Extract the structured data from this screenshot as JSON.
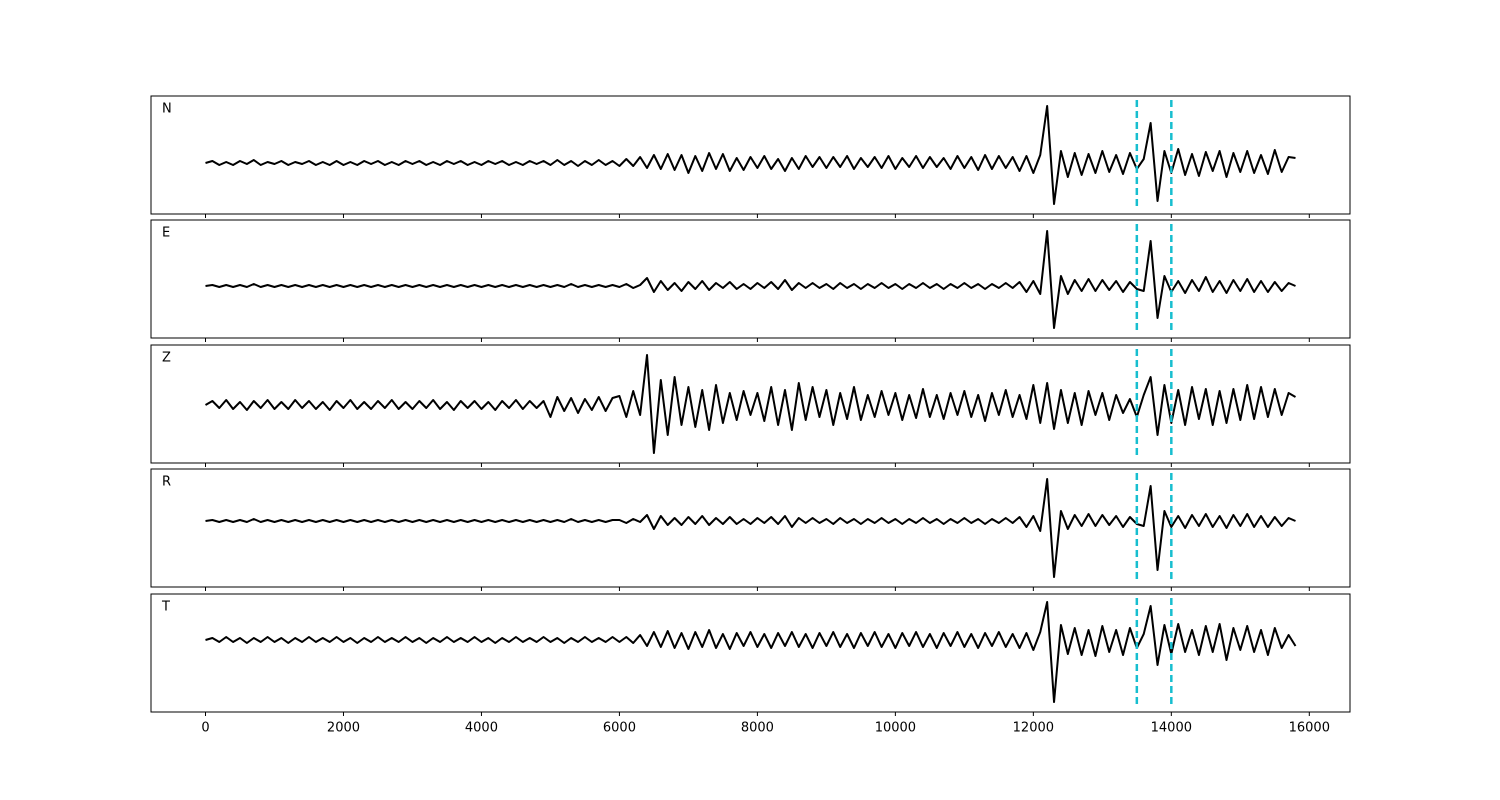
{
  "chart_data": {
    "type": "line",
    "x": [
      0,
      100,
      200,
      300,
      400,
      500,
      600,
      700,
      800,
      900,
      1000,
      1100,
      1200,
      1300,
      1400,
      1500,
      1600,
      1700,
      1800,
      1900,
      2000,
      2100,
      2200,
      2300,
      2400,
      2500,
      2600,
      2700,
      2800,
      2900,
      3000,
      3100,
      3200,
      3300,
      3400,
      3500,
      3600,
      3700,
      3800,
      3900,
      4000,
      4100,
      4200,
      4300,
      4400,
      4500,
      4600,
      4700,
      4800,
      4900,
      5000,
      5100,
      5200,
      5300,
      5400,
      5500,
      5600,
      5700,
      5800,
      5900,
      6000,
      6100,
      6200,
      6300,
      6400,
      6500,
      6600,
      6700,
      6800,
      6900,
      7000,
      7100,
      7200,
      7300,
      7400,
      7500,
      7600,
      7700,
      7800,
      7900,
      8000,
      8100,
      8200,
      8300,
      8400,
      8500,
      8600,
      8700,
      8800,
      8900,
      9000,
      9100,
      9200,
      9300,
      9400,
      9500,
      9600,
      9700,
      9800,
      9900,
      10000,
      10100,
      10200,
      10300,
      10400,
      10500,
      10600,
      10700,
      10800,
      10900,
      11000,
      11100,
      11200,
      11300,
      11400,
      11500,
      11600,
      11700,
      11800,
      11900,
      12000,
      12100,
      12200,
      12300,
      12400,
      12500,
      12600,
      12700,
      12800,
      12900,
      13000,
      13100,
      13200,
      13300,
      13400,
      13500,
      13600,
      13700,
      13800,
      13900,
      14000,
      14100,
      14200,
      14300,
      14400,
      14500,
      14600,
      14700,
      14800,
      14900,
      15000,
      15100,
      15200,
      15300,
      15400,
      15500,
      15600,
      15700,
      15800
    ],
    "xlim": [
      -790,
      16590
    ],
    "xticks": [
      0,
      2000,
      4000,
      6000,
      8000,
      10000,
      12000,
      14000,
      16000
    ],
    "vlines": [
      13500,
      14000
    ],
    "vline_color": "#17becf",
    "series": [
      {
        "name": "N",
        "color": "#000000",
        "ylim": [
          -51,
          67
        ],
        "values": [
          0,
          2,
          -2,
          1,
          -2,
          2,
          -1,
          3,
          -2,
          1,
          -1,
          2,
          -2,
          1,
          -1,
          2,
          -2,
          1,
          -2,
          2,
          -2,
          1,
          -2,
          2,
          -1,
          2,
          -2,
          1,
          -2,
          2,
          -1,
          2,
          -2,
          1,
          -2,
          2,
          -1,
          2,
          -2,
          1,
          -2,
          2,
          -1,
          2,
          -2,
          1,
          -2,
          2,
          -1,
          2,
          -2,
          3,
          -2,
          2,
          -3,
          2,
          -2,
          3,
          -2,
          2,
          -3,
          4,
          -3,
          6,
          -5,
          8,
          -6,
          9,
          -7,
          8,
          -10,
          7,
          -8,
          10,
          -6,
          9,
          -8,
          5,
          -7,
          6,
          -5,
          7,
          -6,
          4,
          -8,
          5,
          -6,
          7,
          -4,
          6,
          -5,
          6,
          -4,
          7,
          -6,
          5,
          -4,
          6,
          -5,
          7,
          -6,
          5,
          -4,
          7,
          -5,
          6,
          -4,
          5,
          -6,
          7,
          -5,
          6,
          -7,
          8,
          -6,
          7,
          -5,
          6,
          -8,
          7,
          -10,
          8,
          57,
          -41,
          12,
          -14,
          10,
          -12,
          9,
          -10,
          12,
          -9,
          8,
          -11,
          10,
          -6,
          4,
          40,
          -38,
          12,
          -10,
          14,
          -12,
          9,
          -13,
          11,
          -8,
          12,
          -14,
          10,
          -9,
          12,
          -10,
          8,
          -11,
          13,
          -9,
          6,
          5
        ]
      },
      {
        "name": "E",
        "color": "#000000",
        "ylim": [
          -52,
          66
        ],
        "values": [
          0,
          1,
          -1,
          1,
          -1,
          1,
          -1,
          2,
          -1,
          1,
          -1,
          1,
          -1,
          1,
          -1,
          1,
          -1,
          1,
          -1,
          1,
          -1,
          1,
          -1,
          1,
          -1,
          1,
          -1,
          1,
          -1,
          1,
          -1,
          1,
          -1,
          1,
          -1,
          1,
          -1,
          1,
          -1,
          1,
          -1,
          1,
          -1,
          1,
          -1,
          1,
          -1,
          1,
          -1,
          1,
          -1,
          1,
          -1,
          2,
          -1,
          1,
          -1,
          1,
          -1,
          1,
          -1,
          2,
          -2,
          1,
          8,
          -6,
          5,
          -4,
          3,
          -5,
          4,
          -3,
          5,
          -4,
          3,
          -2,
          4,
          -3,
          2,
          -3,
          3,
          -2,
          4,
          -3,
          6,
          -4,
          3,
          -2,
          3,
          -2,
          2,
          -3,
          3,
          -2,
          2,
          -3,
          2,
          -2,
          3,
          -2,
          2,
          -3,
          2,
          -2,
          3,
          -2,
          2,
          -3,
          2,
          -2,
          3,
          -2,
          2,
          -3,
          2,
          -2,
          3,
          -2,
          4,
          -6,
          5,
          -8,
          55,
          -42,
          10,
          -8,
          6,
          -5,
          7,
          -5,
          6,
          -4,
          5,
          -6,
          4,
          -3,
          -5,
          45,
          -32,
          10,
          -6,
          5,
          -7,
          6,
          -5,
          9,
          -6,
          5,
          -7,
          6,
          -5,
          7,
          -6,
          5,
          -6,
          4,
          -5,
          3,
          0
        ]
      },
      {
        "name": "Z",
        "color": "#000000",
        "ylim": [
          -58,
          60
        ],
        "values": [
          0,
          4,
          -3,
          5,
          -4,
          3,
          -5,
          4,
          -3,
          5,
          -4,
          3,
          -4,
          5,
          -3,
          4,
          -4,
          3,
          -5,
          4,
          -3,
          5,
          -4,
          3,
          -4,
          4,
          -3,
          5,
          -4,
          3,
          -4,
          4,
          -3,
          5,
          -4,
          3,
          -5,
          4,
          -3,
          4,
          -4,
          3,
          -5,
          4,
          -3,
          5,
          -4,
          4,
          -3,
          4,
          -12,
          8,
          -6,
          7,
          -8,
          6,
          -5,
          8,
          -6,
          7,
          9,
          -12,
          14,
          -10,
          50,
          -48,
          25,
          -30,
          28,
          -20,
          18,
          -22,
          15,
          -25,
          20,
          -18,
          12,
          -15,
          14,
          -10,
          12,
          -16,
          18,
          -20,
          15,
          -25,
          22,
          -15,
          18,
          -12,
          15,
          -20,
          12,
          -14,
          18,
          -15,
          10,
          -12,
          14,
          -10,
          12,
          -15,
          10,
          -13,
          16,
          -12,
          10,
          -14,
          12,
          -10,
          14,
          -12,
          10,
          -16,
          12,
          -10,
          15,
          -12,
          10,
          -14,
          20,
          -18,
          22,
          -24,
          15,
          -18,
          12,
          -20,
          14,
          -10,
          12,
          -15,
          10,
          -8,
          6,
          -12,
          10,
          28,
          -30,
          20,
          -18,
          15,
          -20,
          18,
          -14,
          16,
          -20,
          14,
          -18,
          16,
          -15,
          20,
          -14,
          18,
          -12,
          16,
          -10,
          12,
          8
        ]
      },
      {
        "name": "R",
        "color": "#000000",
        "ylim": [
          -66,
          52
        ],
        "values": [
          0,
          1,
          -1,
          1,
          -1,
          1,
          -1,
          2,
          -1,
          1,
          -1,
          1,
          -1,
          1,
          -1,
          1,
          -1,
          1,
          -1,
          1,
          -1,
          1,
          -1,
          1,
          -1,
          1,
          -1,
          1,
          -1,
          1,
          -1,
          1,
          -1,
          1,
          -1,
          1,
          -1,
          1,
          -1,
          1,
          -1,
          1,
          -1,
          1,
          -1,
          1,
          -1,
          1,
          -1,
          1,
          -1,
          1,
          -1,
          2,
          -1,
          1,
          -1,
          1,
          -1,
          1,
          1,
          -2,
          2,
          -1,
          6,
          -8,
          5,
          -4,
          3,
          -4,
          4,
          -3,
          5,
          -4,
          3,
          -3,
          4,
          -3,
          2,
          -3,
          3,
          -2,
          4,
          -3,
          5,
          -6,
          3,
          -2,
          3,
          -2,
          2,
          -3,
          3,
          -2,
          2,
          -3,
          2,
          -2,
          3,
          -2,
          2,
          -3,
          2,
          -2,
          3,
          -2,
          2,
          -3,
          2,
          -2,
          3,
          -2,
          2,
          -3,
          2,
          -2,
          3,
          -2,
          4,
          -6,
          5,
          -10,
          42,
          -56,
          10,
          -8,
          6,
          -5,
          7,
          -5,
          6,
          -4,
          5,
          -6,
          4,
          -3,
          -5,
          35,
          -49,
          10,
          -6,
          5,
          -7,
          6,
          -5,
          7,
          -6,
          5,
          -7,
          6,
          -5,
          7,
          -6,
          5,
          -6,
          4,
          -5,
          3,
          0
        ]
      },
      {
        "name": "T",
        "color": "#000000",
        "ylim": [
          -72,
          46
        ],
        "values": [
          0,
          2,
          -2,
          3,
          -2,
          2,
          -3,
          2,
          -2,
          3,
          -2,
          2,
          -3,
          2,
          -2,
          3,
          -2,
          2,
          -2,
          3,
          -2,
          2,
          -3,
          2,
          -2,
          3,
          -2,
          2,
          -2,
          3,
          -2,
          2,
          -3,
          2,
          -2,
          3,
          -2,
          2,
          -2,
          3,
          -2,
          2,
          -3,
          2,
          -2,
          3,
          -2,
          2,
          -2,
          3,
          -2,
          2,
          -3,
          2,
          -2,
          3,
          -2,
          2,
          -2,
          3,
          -2,
          3,
          -3,
          5,
          -6,
          8,
          -7,
          9,
          -8,
          7,
          -9,
          8,
          -7,
          10,
          -8,
          6,
          -9,
          7,
          -6,
          8,
          -7,
          6,
          -8,
          7,
          -6,
          8,
          -7,
          6,
          -8,
          7,
          -6,
          8,
          -7,
          6,
          -8,
          7,
          -6,
          8,
          -7,
          6,
          -8,
          7,
          -6,
          8,
          -7,
          6,
          -8,
          7,
          -6,
          8,
          -7,
          6,
          -8,
          7,
          -6,
          8,
          -7,
          6,
          -8,
          7,
          -10,
          8,
          38,
          -62,
          15,
          -14,
          12,
          -15,
          10,
          -16,
          14,
          -12,
          10,
          -15,
          12,
          -8,
          6,
          34,
          -25,
          15,
          -14,
          16,
          -12,
          10,
          -15,
          14,
          -12,
          16,
          -20,
          12,
          -10,
          14,
          -12,
          10,
          -15,
          12,
          -8,
          5,
          -6
        ]
      }
    ]
  }
}
